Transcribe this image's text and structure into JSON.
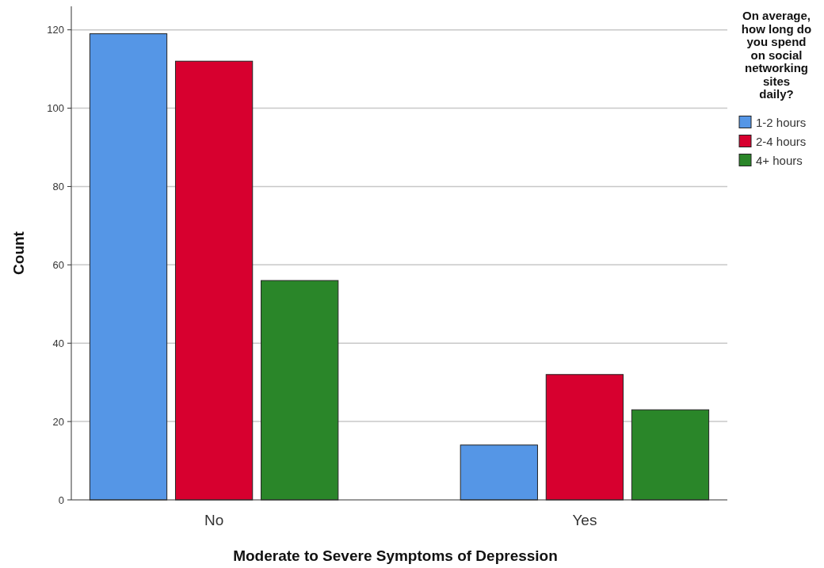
{
  "chart_data": {
    "type": "bar",
    "xlabel": "Moderate to Severe Symptoms of Depression",
    "ylabel": "Count",
    "legend_title": "On average, how long do you spend on social networking sites daily?",
    "categories": [
      "No",
      "Yes"
    ],
    "series": [
      {
        "name": "1-2 hours",
        "color": "#5596e6",
        "values": [
          119,
          14
        ]
      },
      {
        "name": "2-4 hours",
        "color": "#d7002f",
        "values": [
          112,
          32
        ]
      },
      {
        "name": "4+ hours",
        "color": "#2a8629",
        "values": [
          56,
          23
        ]
      }
    ],
    "ylim": [
      0,
      126
    ],
    "yticks": [
      0,
      20,
      40,
      60,
      80,
      100,
      120
    ],
    "grid": "y",
    "legend": "top right"
  }
}
